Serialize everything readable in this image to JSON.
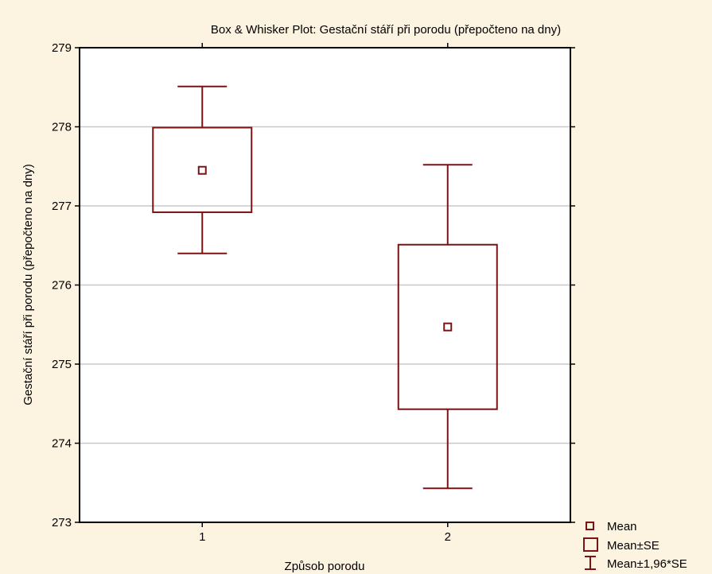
{
  "chart_data": {
    "type": "box",
    "title": "Box & Whisker Plot: Gestační stáří při porodu (přepočteno na dny)",
    "xlabel": "Způsob porodu",
    "ylabel": "Gestační stáří při porodu (přepočteno na dny)",
    "categories": [
      "1",
      "2"
    ],
    "ylim": [
      273,
      279
    ],
    "yticks": [
      "273",
      "274",
      "275",
      "276",
      "277",
      "278",
      "279"
    ],
    "grid": true,
    "series": [
      {
        "mean": [
          277.45,
          275.47
        ],
        "se_low": [
          276.92,
          274.43
        ],
        "se_high": [
          277.99,
          276.51
        ],
        "ci_low": [
          276.4,
          273.43
        ],
        "ci_high": [
          278.51,
          277.52
        ]
      }
    ],
    "legend": {
      "placement": "bottom-right",
      "entries": [
        "Mean",
        "Mean±SE",
        "Mean±1,96*SE"
      ]
    },
    "colors": {
      "mark": "#7b1214",
      "background": "#fdf3e1",
      "plot_bg": "#ffffff",
      "grid": "#c8c8c8"
    }
  }
}
